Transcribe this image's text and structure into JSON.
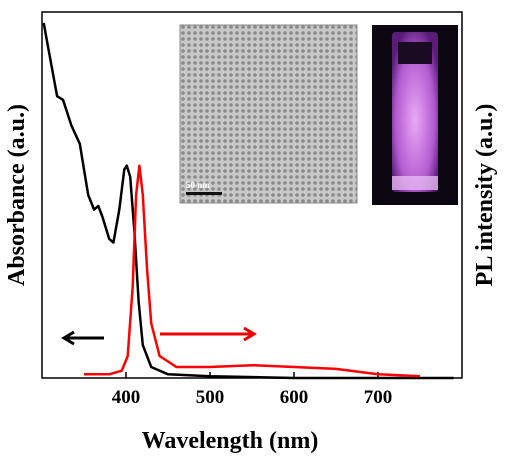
{
  "chart_data": {
    "type": "line",
    "xlabel": "Wavelength (nm)",
    "ylabel": "Absorbance (a.u.)",
    "y2label": "PL intensity (a.u.)",
    "xlim": [
      300,
      800
    ],
    "xticks": [
      400,
      500,
      600,
      700
    ],
    "ylim": [
      0,
      1
    ],
    "y2lim": [
      0,
      1
    ],
    "inset_scale_label": "50 nm",
    "series": [
      {
        "color": "#000000",
        "axis": "y",
        "x": [
          302,
          310,
          318,
          325,
          335,
          345,
          355,
          362,
          367,
          372,
          380,
          385,
          392,
          398,
          401,
          405,
          410,
          415,
          420,
          430,
          450,
          500,
          600,
          700,
          790
        ],
        "values": [
          0.97,
          0.87,
          0.77,
          0.76,
          0.69,
          0.64,
          0.5,
          0.46,
          0.47,
          0.44,
          0.38,
          0.37,
          0.46,
          0.57,
          0.58,
          0.55,
          0.4,
          0.21,
          0.09,
          0.03,
          0.01,
          0.005,
          0,
          0,
          0
        ]
      },
      {
        "color": "#ff0000",
        "axis": "y2",
        "x": [
          350,
          380,
          395,
          402,
          408,
          412,
          416,
          420,
          425,
          430,
          440,
          460,
          500,
          550,
          600,
          650,
          700,
          750
        ],
        "values": [
          0.01,
          0.01,
          0.02,
          0.06,
          0.25,
          0.5,
          0.58,
          0.5,
          0.3,
          0.15,
          0.06,
          0.03,
          0.03,
          0.035,
          0.03,
          0.025,
          0.01,
          0.005
        ]
      }
    ]
  }
}
